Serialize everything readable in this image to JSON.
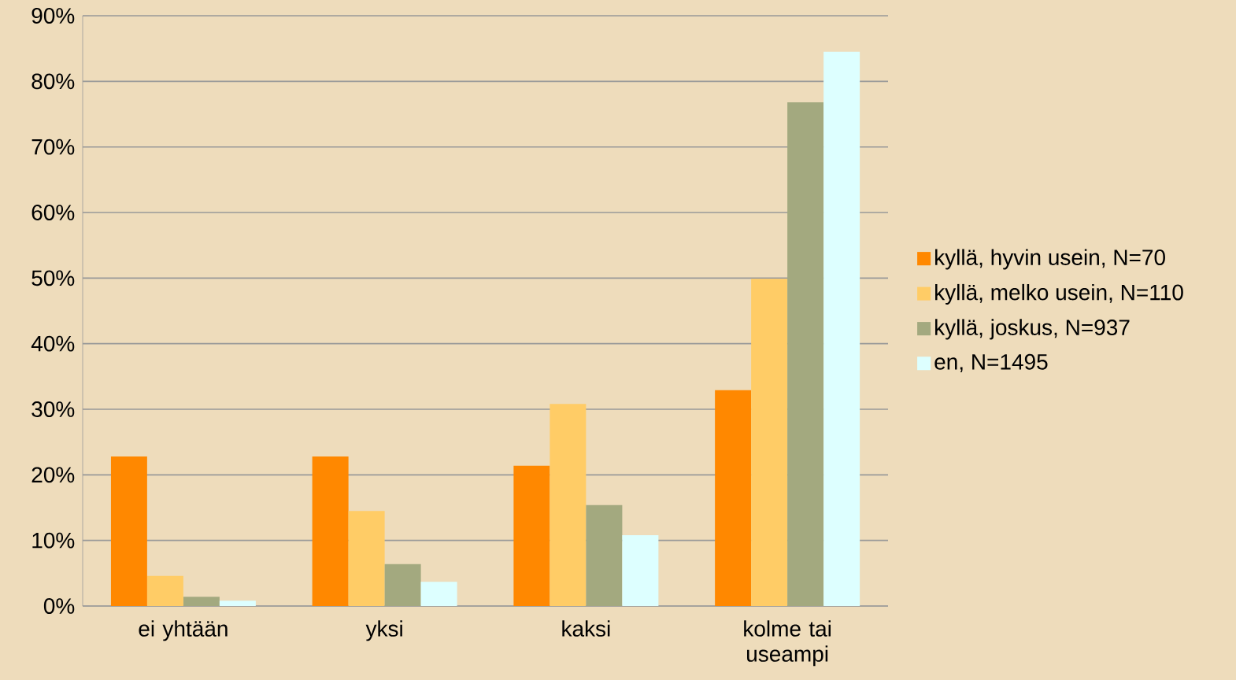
{
  "chart_data": {
    "type": "bar",
    "categories": [
      "ei yhtään",
      "yksi",
      "kaksi",
      "kolme tai useampi"
    ],
    "series": [
      {
        "name": "kyllä, hyvin usein, N=70",
        "color": "#ff8800",
        "values": [
          22.8,
          22.8,
          21.4,
          32.9
        ]
      },
      {
        "name": "kyllä, melko usein, N=110",
        "color": "#ffcc66",
        "values": [
          4.6,
          14.5,
          30.8,
          49.9
        ]
      },
      {
        "name": "kyllä, joskus, N=937",
        "color": "#a3a97f",
        "values": [
          1.4,
          6.4,
          15.4,
          76.8
        ]
      },
      {
        "name": "en, N=1495",
        "color": "#ddffff",
        "values": [
          0.8,
          3.7,
          10.8,
          84.5
        ]
      }
    ],
    "ylim": [
      0,
      90
    ],
    "yticks": [
      {
        "value": 0,
        "label": "0%"
      },
      {
        "value": 10,
        "label": "10%"
      },
      {
        "value": 20,
        "label": "20%"
      },
      {
        "value": 30,
        "label": "30%"
      },
      {
        "value": 40,
        "label": "40%"
      },
      {
        "value": 50,
        "label": "50%"
      },
      {
        "value": 60,
        "label": "60%"
      },
      {
        "value": 70,
        "label": "70%"
      },
      {
        "value": 80,
        "label": "80%"
      },
      {
        "value": 90,
        "label": "90%"
      }
    ],
    "grid": "y",
    "legend": "right"
  }
}
